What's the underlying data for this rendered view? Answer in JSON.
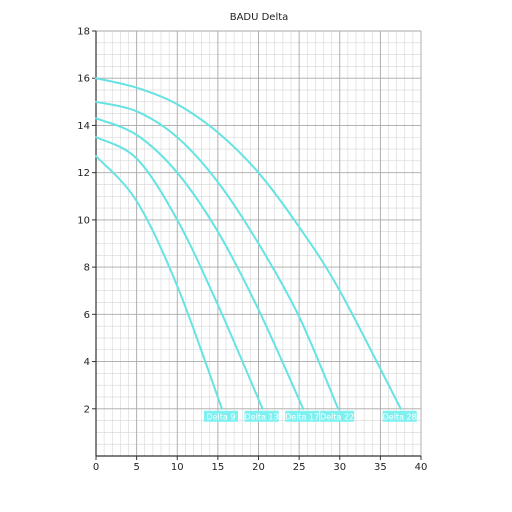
{
  "chart_data": {
    "type": "line",
    "title": "BADU Delta",
    "xlabel": "",
    "ylabel": "",
    "xlim": [
      0,
      40
    ],
    "ylim": [
      0,
      18
    ],
    "x_ticks": [
      "0",
      "5",
      "10",
      "15",
      "20",
      "25",
      "30",
      "35",
      "40"
    ],
    "y_ticks": [
      "2",
      "4",
      "6",
      "8",
      "10",
      "12",
      "14",
      "16",
      "18"
    ],
    "grid": true,
    "line_color": "#66e3e3",
    "label_color": "#7ff0f0",
    "series": [
      {
        "name": "Delta 9",
        "x": [
          0,
          5,
          10,
          15.5
        ],
        "y": [
          12.7,
          10.8,
          7.2,
          2.0
        ]
      },
      {
        "name": "Delta 13",
        "x": [
          0,
          5,
          10,
          15,
          20.5
        ],
        "y": [
          13.5,
          12.6,
          10.0,
          6.4,
          2.0
        ]
      },
      {
        "name": "Delta 17",
        "x": [
          0,
          5,
          10,
          15,
          20,
          25.5
        ],
        "y": [
          14.3,
          13.6,
          12.0,
          9.5,
          6.2,
          2.0
        ]
      },
      {
        "name": "Delta 22",
        "x": [
          0,
          5,
          10,
          15,
          20,
          25,
          29.8
        ],
        "y": [
          15.0,
          14.6,
          13.5,
          11.6,
          9.0,
          5.9,
          2.0
        ]
      },
      {
        "name": "Delta 28",
        "x": [
          0,
          5,
          10,
          15,
          20,
          25,
          30,
          37.5
        ],
        "y": [
          16.0,
          15.6,
          14.9,
          13.7,
          12.0,
          9.7,
          7.0,
          2.0
        ]
      }
    ]
  }
}
